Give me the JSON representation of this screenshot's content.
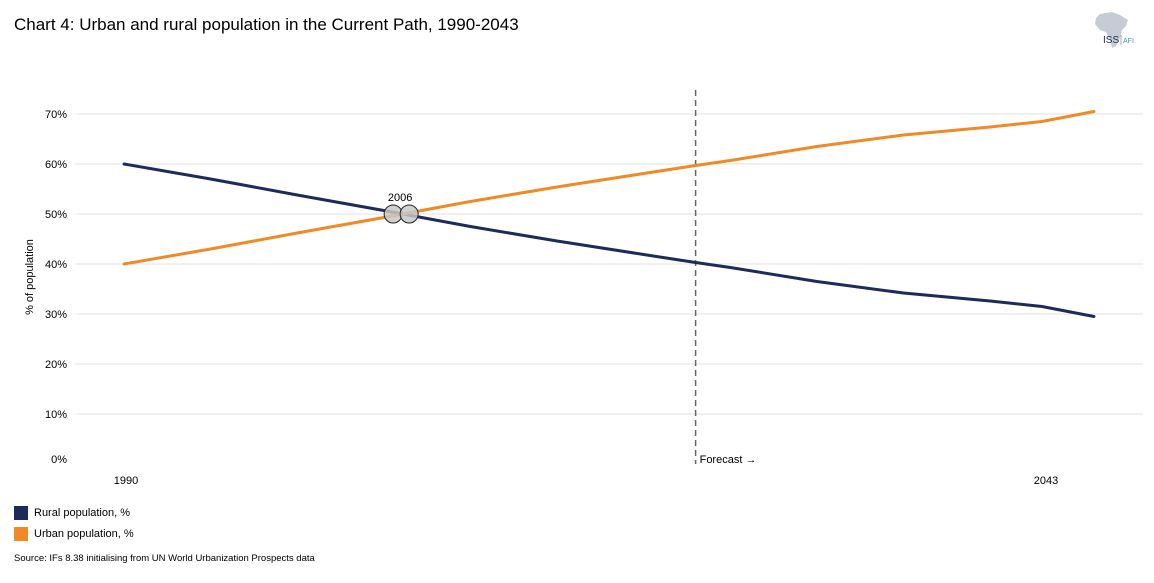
{
  "title": "Chart 4: Urban and rural population in the Current Path, 1990-2043",
  "logo": {
    "text": "ISS",
    "subtext": "AFI"
  },
  "chart_data": {
    "type": "line",
    "ylabel": "% of population",
    "ylim": [
      0,
      70
    ],
    "yticks": [
      0,
      10,
      20,
      30,
      40,
      50,
      60,
      70
    ],
    "ytick_labels": [
      "0%",
      "10%",
      "20%",
      "30%",
      "40%",
      "50%",
      "60%",
      "70%"
    ],
    "xlim": [
      1990,
      2046
    ],
    "xtick_labels": [
      {
        "year": 1990,
        "label": "1990"
      },
      {
        "year": 2043,
        "label": "2043"
      }
    ],
    "forecast_year": 2023,
    "forecast_label": "Forecast →",
    "crossover": {
      "year": 2006,
      "label": "2006"
    },
    "series": [
      {
        "name": "Rural population, %",
        "color": "#1c2b5a",
        "points": [
          [
            1990,
            60
          ],
          [
            1995,
            57
          ],
          [
            2000,
            53.8
          ],
          [
            2005,
            50.7
          ],
          [
            2010,
            47.5
          ],
          [
            2015,
            44.6
          ],
          [
            2020,
            41.9
          ],
          [
            2023,
            40.3
          ],
          [
            2025,
            39.3
          ],
          [
            2030,
            36.5
          ],
          [
            2035,
            34.2
          ],
          [
            2040,
            32.6
          ],
          [
            2043,
            31.5
          ],
          [
            2046,
            29.5
          ]
        ]
      },
      {
        "name": "Urban population, %",
        "color": "#ef8a26",
        "points": [
          [
            1990,
            40
          ],
          [
            1995,
            43
          ],
          [
            2000,
            46.2
          ],
          [
            2005,
            49.3
          ],
          [
            2010,
            52.5
          ],
          [
            2015,
            55.4
          ],
          [
            2020,
            58.1
          ],
          [
            2023,
            59.7
          ],
          [
            2025,
            60.7
          ],
          [
            2030,
            63.5
          ],
          [
            2035,
            65.8
          ],
          [
            2040,
            67.4
          ],
          [
            2043,
            68.5
          ],
          [
            2046,
            70.5
          ]
        ]
      }
    ]
  },
  "legend": {
    "rural": "Rural population, %",
    "urban": "Urban population, %"
  },
  "source": "Source: IFs 8.38 initialising from UN World Urbanization Prospects data"
}
